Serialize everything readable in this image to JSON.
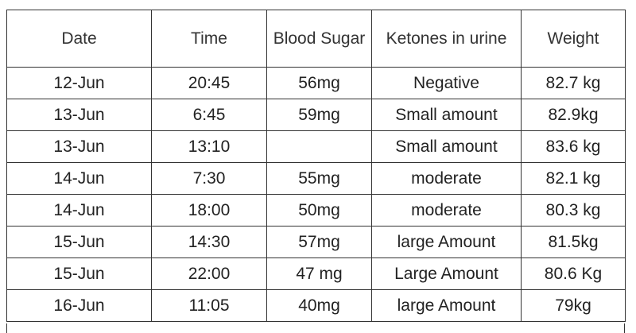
{
  "table": {
    "header": [
      "Date",
      "Time",
      "Blood Sugar",
      "Ketones in urine",
      "Weight"
    ],
    "rows": [
      [
        "12-Jun",
        "20:45",
        "56mg",
        "Negative",
        "82.7 kg"
      ],
      [
        "13-Jun",
        "6:45",
        "59mg",
        "Small amount",
        "82.9kg"
      ],
      [
        "13-Jun",
        "13:10",
        null,
        "Small amount",
        "83.6 kg"
      ],
      [
        "14-Jun",
        "7:30",
        "55mg",
        "moderate",
        "82.1 kg"
      ],
      [
        "14-Jun",
        "18:00",
        "50mg",
        "moderate",
        "80.3 kg"
      ],
      [
        "15-Jun",
        "14:30",
        "57mg",
        "large Amount",
        "81.5kg"
      ],
      [
        "15-Jun",
        "22:00",
        "47 mg",
        "Large Amount",
        "80.6 Kg"
      ],
      [
        "16-Jun",
        "11:05",
        "40mg",
        "large Amount",
        "79kg"
      ]
    ]
  }
}
